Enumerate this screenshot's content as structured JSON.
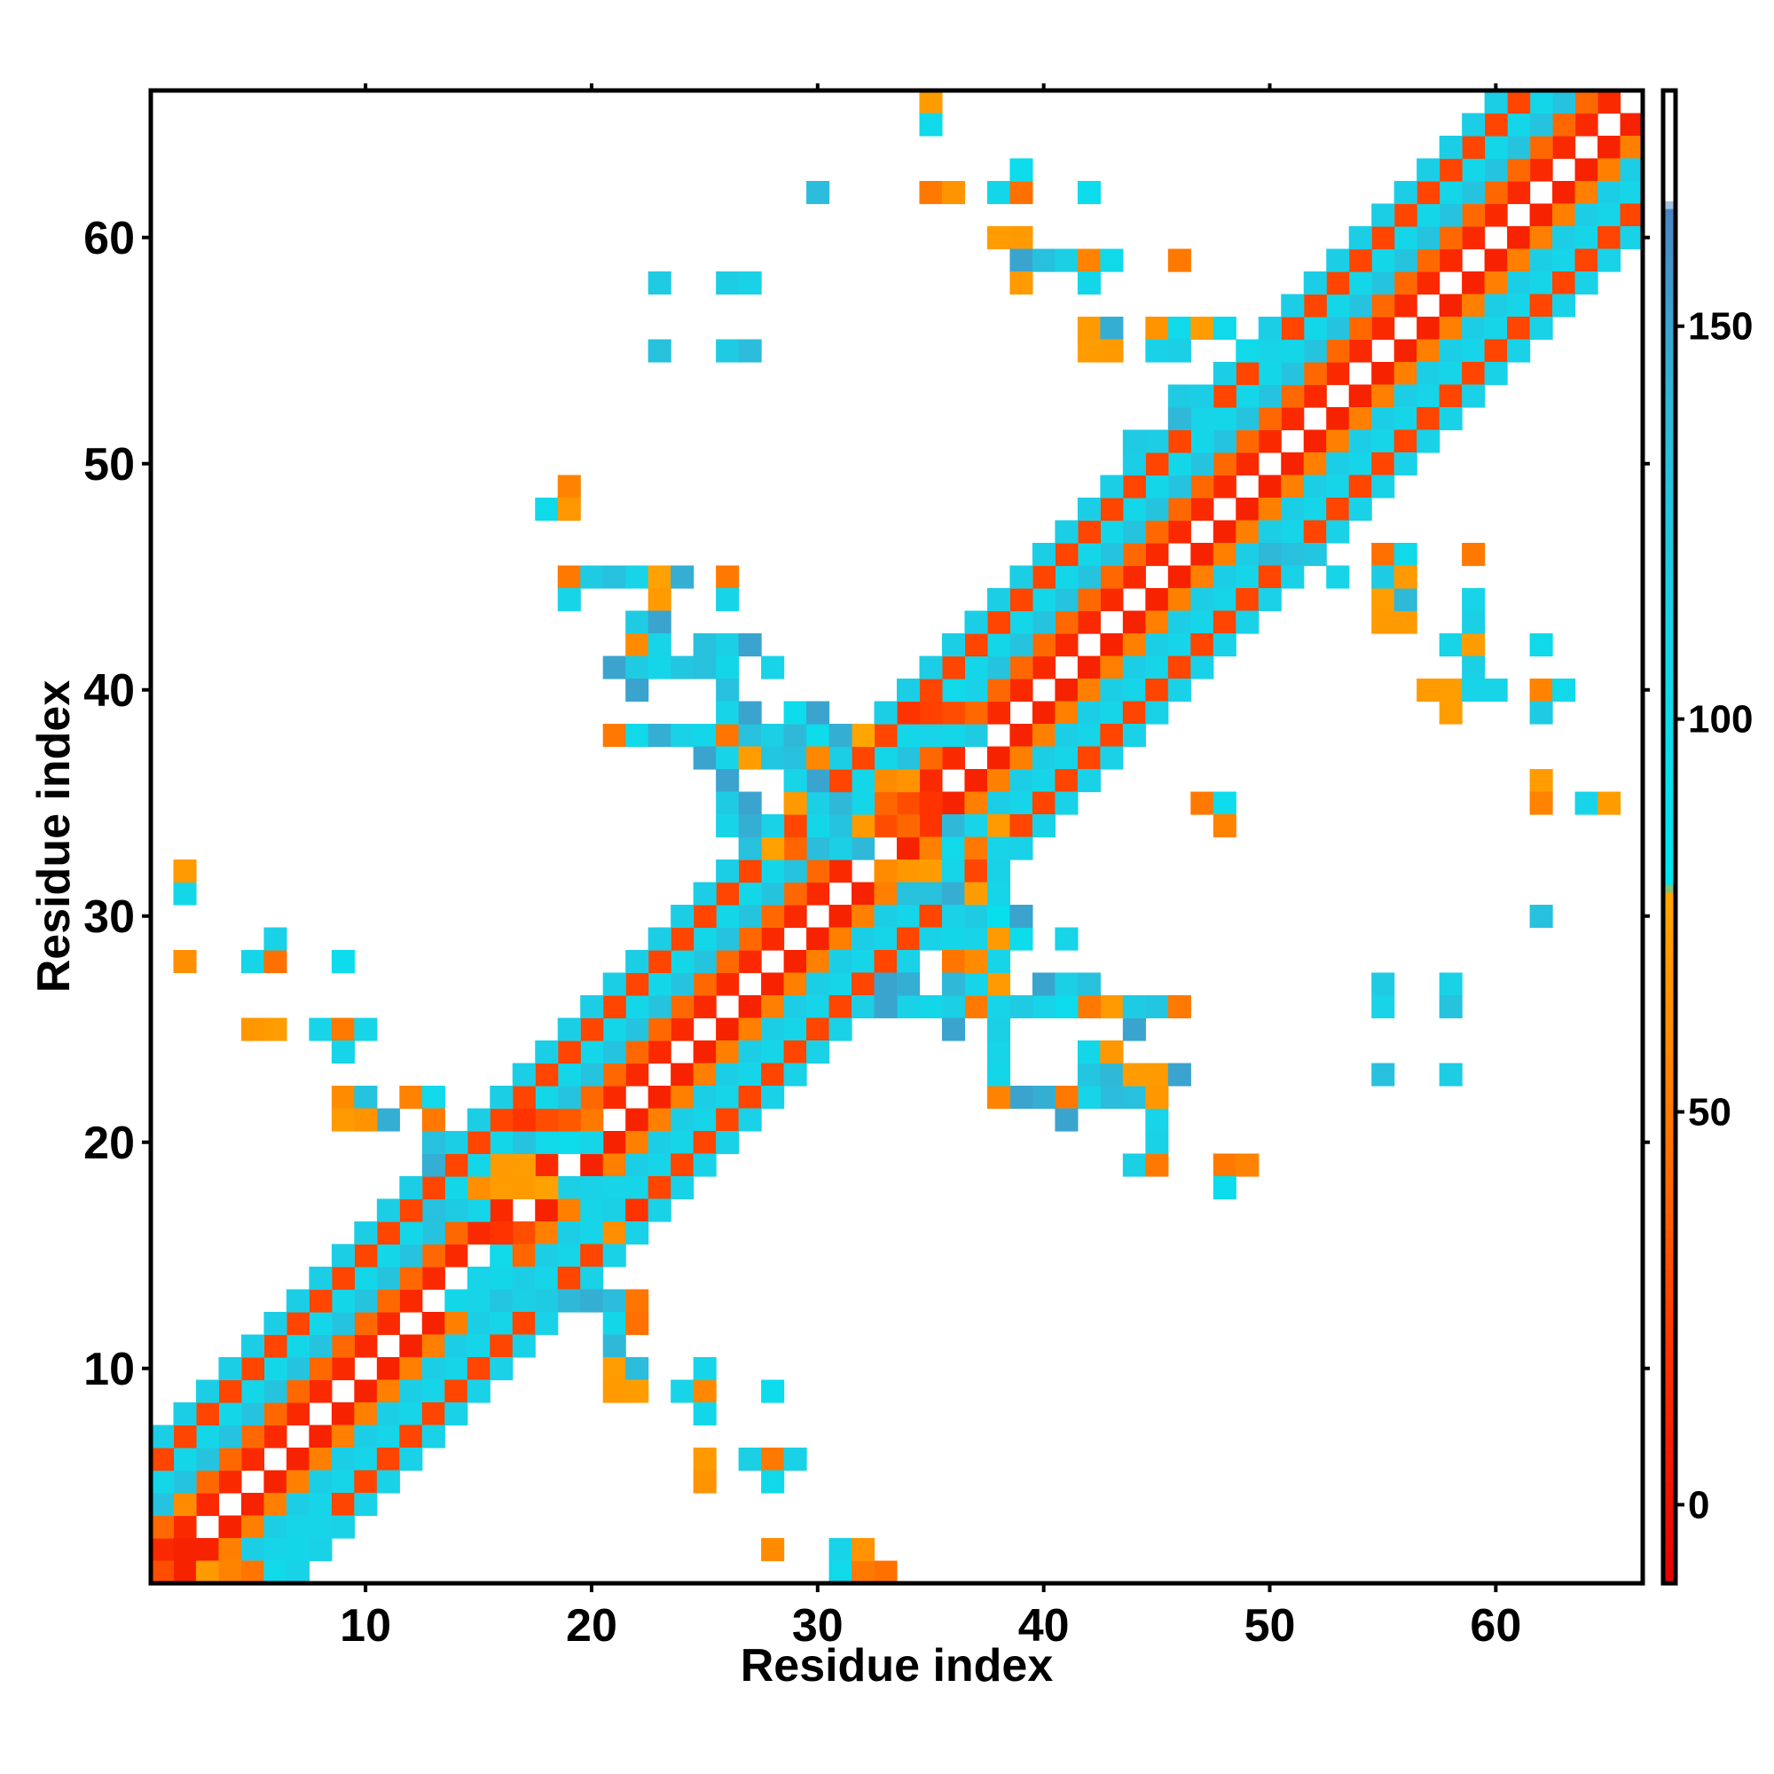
{
  "chart_data": {
    "type": "heatmap",
    "title": "",
    "xlabel": "Residue index",
    "ylabel": "Residue index",
    "xlim": [
      0.5,
      66.5
    ],
    "ylim": [
      0.5,
      66.5
    ],
    "x_ticks": [
      10,
      20,
      30,
      40,
      50,
      60
    ],
    "y_ticks": [
      10,
      20,
      30,
      40,
      50,
      60
    ],
    "x_tick_labels": [
      "10",
      "20",
      "30",
      "40",
      "50",
      "60"
    ],
    "y_tick_labels": [
      "10",
      "20",
      "30",
      "40",
      "50",
      "60"
    ],
    "grid": false,
    "legend": "colorbar-right",
    "colorbar": {
      "range": [
        -10,
        180
      ],
      "ticks": [
        0,
        50,
        100,
        150
      ],
      "tick_labels": [
        "0",
        "50",
        "100",
        "150"
      ],
      "stops": [
        {
          "value": -10,
          "color": "#e60000"
        },
        {
          "value": 20,
          "color": "#ff3300"
        },
        {
          "value": 40,
          "color": "#ff6600"
        },
        {
          "value": 60,
          "color": "#ff8c00"
        },
        {
          "value": 78,
          "color": "#ffa500"
        },
        {
          "value": 79,
          "color": "#00e5ee"
        },
        {
          "value": 110,
          "color": "#17d4e8"
        },
        {
          "value": 140,
          "color": "#2fb8d8"
        },
        {
          "value": 165,
          "color": "#4b85c2"
        },
        {
          "value": 166,
          "color": "#ffffff"
        },
        {
          "value": 180,
          "color": "#ffffff"
        }
      ]
    },
    "near_diagonal": [
      {
        "offset": 1,
        "value": 10
      },
      {
        "offset": 2,
        "value": 45
      },
      {
        "offset": 3,
        "value": 120
      },
      {
        "offset": 4,
        "value": 105
      },
      {
        "offset": 5,
        "value": 35
      },
      {
        "offset": 6,
        "value": 112
      }
    ],
    "cells": [
      [
        1,
        1,
        30
      ],
      [
        3,
        1,
        70
      ],
      [
        4,
        1,
        55
      ],
      [
        5,
        1,
        48
      ],
      [
        6,
        1,
        100
      ],
      [
        2,
        2,
        10
      ],
      [
        7,
        2,
        105
      ],
      [
        8,
        3,
        110
      ],
      [
        2,
        4,
        60
      ],
      [
        33,
        1,
        45
      ],
      [
        31,
        1,
        100
      ],
      [
        32,
        1,
        50
      ],
      [
        27,
        6,
        115
      ],
      [
        6,
        25,
        72
      ],
      [
        5,
        25,
        68
      ],
      [
        8,
        25,
        110
      ],
      [
        9,
        25,
        50
      ],
      [
        10,
        25,
        110
      ],
      [
        9,
        24,
        108
      ],
      [
        9,
        22,
        60
      ],
      [
        10,
        22,
        128
      ],
      [
        11,
        21,
        145
      ],
      [
        12,
        22,
        55
      ],
      [
        13,
        22,
        100
      ],
      [
        13,
        21,
        50
      ],
      [
        9,
        21,
        70
      ],
      [
        10,
        21,
        65
      ],
      [
        2,
        31,
        105
      ],
      [
        2,
        32,
        70
      ],
      [
        2,
        28,
        62
      ],
      [
        5,
        28,
        108
      ],
      [
        6,
        28,
        45
      ],
      [
        6,
        29,
        112
      ],
      [
        9,
        28,
        95
      ],
      [
        13,
        20,
        130
      ],
      [
        13,
        19,
        145
      ],
      [
        13,
        17,
        130
      ],
      [
        14,
        17,
        120
      ],
      [
        15,
        17,
        108
      ],
      [
        15,
        18,
        62
      ],
      [
        16,
        18,
        72
      ],
      [
        17,
        18,
        70
      ],
      [
        18,
        18,
        75
      ],
      [
        16,
        19,
        70
      ],
      [
        17,
        19,
        72
      ],
      [
        17,
        21,
        20
      ],
      [
        18,
        21,
        30
      ],
      [
        19,
        21,
        35
      ],
      [
        20,
        21,
        50
      ],
      [
        18,
        20,
        100
      ],
      [
        19,
        20,
        95
      ],
      [
        20,
        20,
        108
      ],
      [
        14,
        13,
        105
      ],
      [
        15,
        13,
        110
      ],
      [
        16,
        13,
        125
      ],
      [
        17,
        13,
        115
      ],
      [
        18,
        13,
        120
      ],
      [
        19,
        13,
        140
      ],
      [
        20,
        13,
        145
      ],
      [
        21,
        13,
        135
      ],
      [
        22,
        13,
        48
      ],
      [
        21,
        12,
        105
      ],
      [
        22,
        12,
        45
      ],
      [
        21,
        11,
        140
      ],
      [
        21,
        10,
        72
      ],
      [
        22,
        10,
        135
      ],
      [
        21,
        9,
        70
      ],
      [
        22,
        9,
        72
      ],
      [
        24,
        9,
        110
      ],
      [
        25,
        9,
        58
      ],
      [
        28,
        9,
        95
      ],
      [
        25,
        10,
        108
      ],
      [
        25,
        8,
        105
      ],
      [
        25,
        6,
        70
      ],
      [
        25,
        5,
        65
      ],
      [
        28,
        6,
        50
      ],
      [
        29,
        6,
        112
      ],
      [
        28,
        5,
        100
      ],
      [
        28,
        2,
        60
      ],
      [
        31,
        2,
        110
      ],
      [
        32,
        2,
        65
      ],
      [
        16,
        15,
        100
      ],
      [
        16,
        16,
        20
      ],
      [
        17,
        16,
        30
      ],
      [
        17,
        15,
        40
      ],
      [
        15,
        14,
        110
      ],
      [
        16,
        14,
        105
      ],
      [
        19,
        18,
        115
      ],
      [
        20,
        18,
        112
      ],
      [
        21,
        18,
        110
      ],
      [
        20,
        17,
        108
      ],
      [
        21,
        16,
        62
      ],
      [
        22,
        17,
        20
      ],
      [
        21,
        17,
        115
      ],
      [
        35,
        66,
        72
      ],
      [
        35,
        65,
        100
      ],
      [
        30,
        62,
        135
      ],
      [
        35,
        62,
        50
      ],
      [
        36,
        62,
        65
      ],
      [
        38,
        62,
        105
      ],
      [
        39,
        62,
        45
      ],
      [
        42,
        62,
        95
      ],
      [
        39,
        63,
        95
      ],
      [
        38,
        60,
        72
      ],
      [
        39,
        60,
        70
      ],
      [
        39,
        59,
        150
      ],
      [
        40,
        59,
        130
      ],
      [
        41,
        59,
        115
      ],
      [
        42,
        59,
        55
      ],
      [
        43,
        59,
        100
      ],
      [
        46,
        59,
        50
      ],
      [
        39,
        58,
        70
      ],
      [
        42,
        58,
        105
      ],
      [
        23,
        58,
        120
      ],
      [
        26,
        58,
        118
      ],
      [
        27,
        58,
        112
      ],
      [
        23,
        55,
        130
      ],
      [
        26,
        55,
        120
      ],
      [
        27,
        55,
        135
      ],
      [
        42,
        56,
        70
      ],
      [
        43,
        56,
        145
      ],
      [
        45,
        56,
        65
      ],
      [
        46,
        56,
        100
      ],
      [
        42,
        55,
        72
      ],
      [
        43,
        55,
        70
      ],
      [
        45,
        55,
        112
      ],
      [
        46,
        55,
        115
      ],
      [
        19,
        49,
        55
      ],
      [
        18,
        48,
        100
      ],
      [
        19,
        48,
        68
      ],
      [
        19,
        45,
        50
      ],
      [
        20,
        45,
        120
      ],
      [
        21,
        45,
        130
      ],
      [
        22,
        45,
        110
      ],
      [
        23,
        45,
        75
      ],
      [
        24,
        45,
        145
      ],
      [
        26,
        45,
        50
      ],
      [
        19,
        44,
        110
      ],
      [
        23,
        44,
        70
      ],
      [
        26,
        44,
        110
      ],
      [
        22,
        43,
        120
      ],
      [
        23,
        43,
        150
      ],
      [
        22,
        42,
        60
      ],
      [
        23,
        42,
        110
      ],
      [
        25,
        42,
        130
      ],
      [
        26,
        42,
        115
      ],
      [
        27,
        42,
        150
      ],
      [
        21,
        41,
        150
      ],
      [
        22,
        41,
        120
      ],
      [
        23,
        41,
        105
      ],
      [
        24,
        41,
        125
      ],
      [
        25,
        41,
        130
      ],
      [
        26,
        41,
        105
      ],
      [
        28,
        41,
        110
      ],
      [
        22,
        40,
        150
      ],
      [
        26,
        40,
        130
      ],
      [
        21,
        38,
        50
      ],
      [
        22,
        38,
        100
      ],
      [
        23,
        38,
        145
      ],
      [
        24,
        38,
        112
      ],
      [
        25,
        38,
        105
      ],
      [
        26,
        38,
        48
      ],
      [
        27,
        38,
        130
      ],
      [
        28,
        38,
        115
      ],
      [
        29,
        38,
        140
      ],
      [
        30,
        38,
        96
      ],
      [
        31,
        38,
        145
      ],
      [
        32,
        38,
        78
      ],
      [
        26,
        39,
        110
      ],
      [
        27,
        39,
        150
      ],
      [
        29,
        39,
        95
      ],
      [
        30,
        39,
        150
      ],
      [
        25,
        37,
        150
      ],
      [
        26,
        37,
        110
      ],
      [
        27,
        37,
        72
      ],
      [
        28,
        37,
        125
      ],
      [
        29,
        37,
        130
      ],
      [
        30,
        37,
        58
      ],
      [
        26,
        36,
        150
      ],
      [
        29,
        36,
        110
      ],
      [
        30,
        36,
        150
      ],
      [
        26,
        35,
        120
      ],
      [
        27,
        35,
        150
      ],
      [
        29,
        35,
        70
      ],
      [
        30,
        35,
        115
      ],
      [
        31,
        35,
        140
      ],
      [
        32,
        35,
        105
      ],
      [
        26,
        34,
        110
      ],
      [
        27,
        34,
        145
      ],
      [
        28,
        34,
        112
      ],
      [
        27,
        33,
        130
      ],
      [
        28,
        33,
        75
      ],
      [
        29,
        33,
        40
      ],
      [
        30,
        33,
        135
      ],
      [
        31,
        33,
        115
      ],
      [
        32,
        33,
        140
      ],
      [
        47,
        35,
        50
      ],
      [
        48,
        35,
        60
      ],
      [
        48,
        34,
        55
      ],
      [
        48,
        35,
        95
      ],
      [
        64,
        35,
        110
      ],
      [
        65,
        35,
        72
      ],
      [
        62,
        36,
        72
      ],
      [
        62,
        35,
        55
      ],
      [
        57,
        40,
        70
      ],
      [
        58,
        40,
        72
      ],
      [
        59,
        40,
        110
      ],
      [
        60,
        40,
        110
      ],
      [
        62,
        40,
        55
      ],
      [
        63,
        40,
        100
      ],
      [
        58,
        39,
        72
      ],
      [
        62,
        39,
        120
      ],
      [
        55,
        43,
        70
      ],
      [
        56,
        43,
        70
      ],
      [
        55,
        44,
        72
      ],
      [
        56,
        44,
        140
      ],
      [
        58,
        42,
        110
      ],
      [
        59,
        42,
        72
      ],
      [
        62,
        42,
        100
      ],
      [
        59,
        43,
        115
      ],
      [
        59,
        44,
        110
      ],
      [
        55,
        46,
        45
      ],
      [
        56,
        46,
        100
      ],
      [
        59,
        46,
        50
      ],
      [
        55,
        45,
        120
      ],
      [
        56,
        45,
        70
      ],
      [
        59,
        41,
        115
      ],
      [
        62,
        30,
        130
      ],
      [
        50,
        46,
        140
      ],
      [
        51,
        46,
        130
      ],
      [
        52,
        46,
        125
      ],
      [
        53,
        45,
        110
      ],
      [
        44,
        51,
        120
      ],
      [
        45,
        51,
        118
      ],
      [
        46,
        52,
        140
      ],
      [
        46,
        53,
        120
      ],
      [
        47,
        52,
        110
      ],
      [
        47,
        56,
        72
      ],
      [
        48,
        56,
        100
      ],
      [
        49,
        55,
        100
      ],
      [
        50,
        55,
        110
      ],
      [
        55,
        27,
        120
      ],
      [
        55,
        26,
        110
      ],
      [
        58,
        27,
        112
      ],
      [
        58,
        26,
        128
      ],
      [
        55,
        23,
        130
      ],
      [
        58,
        23,
        118
      ],
      [
        48,
        19,
        50
      ],
      [
        49,
        19,
        55
      ],
      [
        48,
        18,
        95
      ],
      [
        44,
        19,
        115
      ],
      [
        45,
        19,
        50
      ],
      [
        45,
        20,
        112
      ],
      [
        45,
        21,
        110
      ],
      [
        44,
        22,
        130
      ],
      [
        45,
        22,
        68
      ],
      [
        43,
        22,
        135
      ],
      [
        42,
        22,
        110
      ],
      [
        41,
        22,
        50
      ],
      [
        42,
        23,
        125
      ],
      [
        43,
        23,
        140
      ],
      [
        44,
        23,
        72
      ],
      [
        45,
        23,
        70
      ],
      [
        46,
        23,
        150
      ],
      [
        40,
        22,
        145
      ],
      [
        41,
        21,
        150
      ],
      [
        39,
        22,
        150
      ],
      [
        38,
        22,
        55
      ],
      [
        42,
        24,
        105
      ],
      [
        43,
        24,
        68
      ],
      [
        44,
        25,
        150
      ],
      [
        38,
        23,
        105
      ],
      [
        38,
        24,
        110
      ],
      [
        43,
        26,
        70
      ],
      [
        44,
        26,
        120
      ],
      [
        45,
        26,
        125
      ],
      [
        46,
        26,
        50
      ],
      [
        42,
        26,
        50
      ],
      [
        41,
        26,
        95
      ],
      [
        40,
        26,
        110
      ],
      [
        37,
        26,
        50
      ],
      [
        38,
        26,
        110
      ],
      [
        39,
        26,
        120
      ],
      [
        40,
        27,
        150
      ],
      [
        41,
        27,
        115
      ],
      [
        42,
        27,
        130
      ],
      [
        38,
        27,
        70
      ],
      [
        36,
        26,
        115
      ],
      [
        37,
        27,
        110
      ],
      [
        36,
        25,
        150
      ],
      [
        38,
        25,
        115
      ],
      [
        35,
        26,
        105
      ],
      [
        34,
        26,
        112
      ],
      [
        33,
        26,
        150
      ],
      [
        32,
        26,
        115
      ],
      [
        33,
        27,
        150
      ],
      [
        34,
        27,
        145
      ],
      [
        36,
        29,
        105
      ],
      [
        37,
        29,
        110
      ],
      [
        38,
        29,
        70
      ],
      [
        39,
        29,
        96
      ],
      [
        41,
        29,
        110
      ],
      [
        37,
        30,
        120
      ],
      [
        38,
        30,
        90
      ],
      [
        39,
        30,
        150
      ],
      [
        34,
        31,
        130
      ],
      [
        35,
        31,
        130
      ],
      [
        36,
        31,
        145
      ],
      [
        37,
        31,
        72
      ],
      [
        38,
        31,
        110
      ],
      [
        34,
        32,
        68
      ],
      [
        35,
        32,
        72
      ],
      [
        33,
        32,
        60
      ],
      [
        36,
        28,
        48
      ],
      [
        36,
        27,
        140
      ],
      [
        37,
        28,
        60
      ],
      [
        38,
        28,
        110
      ],
      [
        36,
        33,
        100
      ],
      [
        37,
        33,
        50
      ],
      [
        38,
        34,
        112
      ],
      [
        38,
        33,
        110
      ],
      [
        36,
        34,
        140
      ],
      [
        37,
        34,
        110
      ],
      [
        38,
        34,
        70
      ],
      [
        32,
        34,
        70
      ],
      [
        33,
        34,
        30
      ],
      [
        34,
        34,
        40
      ],
      [
        35,
        34,
        20
      ],
      [
        33,
        35,
        40
      ],
      [
        34,
        35,
        30
      ],
      [
        35,
        35,
        20
      ],
      [
        33,
        36,
        60
      ],
      [
        34,
        36,
        65
      ],
      [
        34,
        39,
        20
      ],
      [
        35,
        39,
        25
      ],
      [
        36,
        39,
        30
      ],
      [
        35,
        38,
        110
      ],
      [
        36,
        38,
        105
      ],
      [
        37,
        38,
        120
      ],
      [
        36,
        40,
        100
      ],
      [
        37,
        40,
        112
      ]
    ]
  }
}
